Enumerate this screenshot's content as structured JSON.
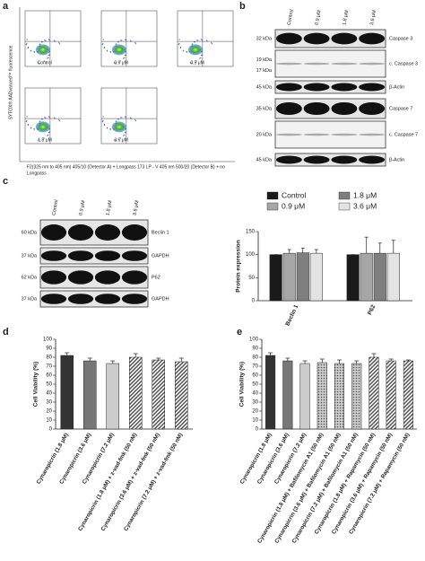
{
  "panel_labels": [
    "a",
    "b",
    "c",
    "d",
    "e"
  ],
  "flow": {
    "y_label": "SYTOX® AADvanced™ fluorescence",
    "x_label": [
      "F2(325 nm to 405 nm) 405/10 (Detector A) + Longpass 173 LP - V 405 nm 500/20 (Detector B) + no",
      "Longpass"
    ],
    "plots": [
      "Control",
      "0.9 μM",
      "0.9 μM",
      "1.8 μM",
      "3.6 μM"
    ]
  },
  "blot_b": {
    "lanes": [
      "Control",
      "0.9 μM",
      "1.8 μM",
      "3.6 μM"
    ],
    "rows": [
      {
        "kda": [
          "32 kDa"
        ],
        "label": "Caspase 3"
      },
      {
        "kda": [
          "19 kDa",
          "17 kDa"
        ],
        "label": "c. Caspase 3"
      },
      {
        "kda": [
          "45 kDa"
        ],
        "label": "β-Actin"
      },
      {
        "kda": [
          "35 kDa"
        ],
        "label": "Caspase 7"
      },
      {
        "kda": [
          "20 kDa"
        ],
        "label": "c. Caspase 7"
      },
      {
        "kda": [
          "45 kDa"
        ],
        "label": "β-Actin"
      }
    ]
  },
  "blot_c": {
    "lanes": [
      "Control",
      "0.9 μM",
      "1.8 μM",
      "3.6 μM"
    ],
    "rows": [
      {
        "kda": [
          "60 kDa"
        ],
        "label": "Beclin 1"
      },
      {
        "kda": [
          "37 kDa"
        ],
        "label": "GAPDH"
      },
      {
        "kda": [
          "62 kDa"
        ],
        "label": "P62"
      },
      {
        "kda": [
          "37 kDa"
        ],
        "label": "GAPDH"
      }
    ]
  },
  "chart_data": [
    {
      "type": "bar",
      "y_label": "Protein expression",
      "categories": [
        "Beclin 1",
        "P62"
      ],
      "legend": "top",
      "series": [
        {
          "name": "Control",
          "color": "#1a1a1a",
          "values": [
            100,
            100
          ],
          "errors": [
            0,
            0
          ]
        },
        {
          "name": "0.9 μM",
          "color": "#a6a6a6",
          "values": [
            103,
            103
          ],
          "errors": [
            8,
            35
          ]
        },
        {
          "name": "1.8 μM",
          "color": "#7f7f7f",
          "values": [
            104,
            103
          ],
          "errors": [
            10,
            22
          ]
        },
        {
          "name": "3.6 μM",
          "color": "#e3e3e3",
          "values": [
            103,
            103
          ],
          "errors": [
            8,
            28
          ]
        }
      ],
      "ylim": [
        0,
        150
      ],
      "yticks": [
        0,
        50,
        100,
        150
      ]
    },
    {
      "type": "bar",
      "y_label": "Cell Viability (%)",
      "categories": [
        "Cynaropicrin (1.8 μM)",
        "Cynaropicrin (3.6 μM)",
        "Cynaropicrin (7.2 μM)",
        "Cynaropicrin (1.8 μM) + z-vad-fmk (50 nM)",
        "Cynaropicrin (3.6 μM) + z-vad-fmk (50 nM)",
        "Cynaropicrin (7.2 μM) + z-vad-fmk (50 nM)"
      ],
      "values": [
        82,
        76,
        73,
        80,
        77,
        75
      ],
      "errors": [
        3,
        3,
        3,
        4,
        2,
        4
      ],
      "colors": [
        "#333333",
        "#777777",
        "#cccccc",
        "#333333",
        "#777777",
        "#cccccc"
      ],
      "patterns": [
        "solid",
        "solid",
        "solid",
        "hatch",
        "hatch",
        "hatch"
      ],
      "ylim": [
        0,
        100
      ],
      "yticks": [
        0,
        10,
        20,
        30,
        40,
        50,
        60,
        70,
        80,
        90,
        100
      ]
    },
    {
      "type": "bar",
      "y_label": "Cell Viability (%)",
      "categories": [
        "Cynaropicrin (1.8 μM)",
        "Cynaropicrin (3.6 μM)",
        "Cynaropicrin (7.2 μM)",
        "Cynaropicrin (1.8 μM) + Bafilomycin A1 (50 nM)",
        "Cynaropicrin (3.6 μM) + Bafilomycin A1 (50 nM)",
        "Cynaropicrin (7.2 μM) + Bafilomycin A1 (50 nM)",
        "Cynaropicrin (1.8 μM) + Rapamycin (50 nM)",
        "Cynaropicrin (3.6 μM) + Rapamycin (50 nM)",
        "Cynaropicrin (7.2 μM) + Rapamycin (50 nM)"
      ],
      "values": [
        82,
        76,
        73,
        74,
        73,
        73,
        80,
        76,
        76
      ],
      "errors": [
        3,
        3,
        3,
        4,
        4,
        3,
        4,
        2,
        1
      ],
      "colors": [
        "#333333",
        "#777777",
        "#cccccc",
        "#aaaaaa",
        "#999999",
        "#bbbbbb",
        "#333333",
        "#777777",
        "#cccccc"
      ],
      "patterns": [
        "solid",
        "solid",
        "solid",
        "dots",
        "dots",
        "dots",
        "hatch",
        "hatch",
        "hatch"
      ],
      "ylim": [
        0,
        100
      ],
      "yticks": [
        0,
        10,
        20,
        30,
        40,
        50,
        60,
        70,
        80,
        90,
        100
      ]
    }
  ]
}
